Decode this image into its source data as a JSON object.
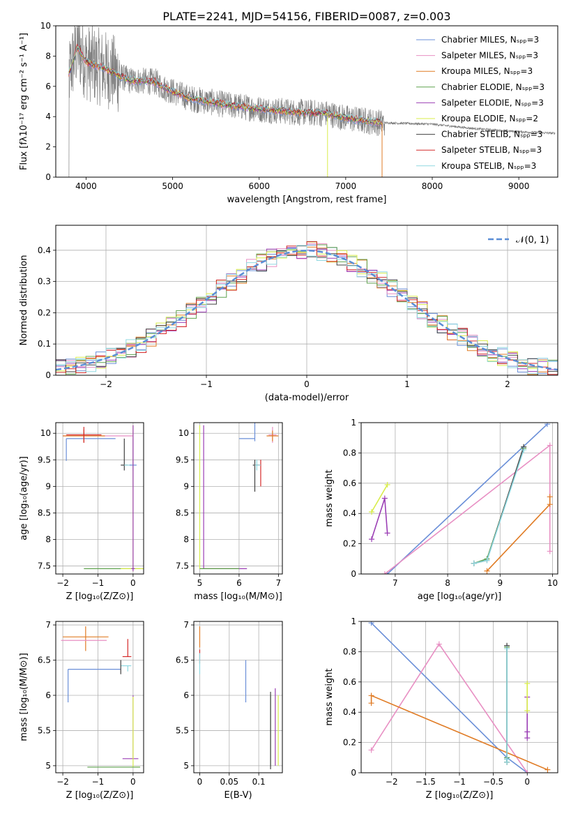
{
  "figure": {
    "title": "PLATE=2241, MJD=54156, FIBERID=0087, z=0.003"
  },
  "colors": {
    "spectrum": "#808080",
    "normal": "#5b8ed6",
    "series": [
      "#6a8fd8",
      "#e88fc3",
      "#e07b24",
      "#5fa24f",
      "#9b3fb5",
      "#d8ec4a",
      "#404040",
      "#d42a2a",
      "#8fd8e0"
    ]
  },
  "chart_data": [
    {
      "id": "spectrum",
      "type": "line",
      "xlabel": "wavelength [Angstrom, rest frame]",
      "ylabel": "Flux [fλ10⁻¹⁷ erg cm⁻² s⁻¹ A⁻¹]",
      "xlim": [
        3650,
        9450
      ],
      "ylim": [
        0,
        10
      ],
      "xticks": [
        4000,
        5000,
        6000,
        7000,
        8000,
        9000
      ],
      "yticks": [
        0,
        2,
        4,
        6,
        8,
        10
      ],
      "legend_loc": "right",
      "legend": [
        {
          "label": "Chabrier MILES, Nₛₚₚ=3",
          "color": "#6a8fd8"
        },
        {
          "label": "Salpeter MILES, Nₛₚₚ=3",
          "color": "#e88fc3"
        },
        {
          "label": "Kroupa MILES, Nₛₚₚ=3",
          "color": "#e07b24"
        },
        {
          "label": "Chabrier ELODIE, Nₛₚₚ=3",
          "color": "#5fa24f"
        },
        {
          "label": "Salpeter ELODIE, Nₛₚₚ=3",
          "color": "#9b3fb5"
        },
        {
          "label": "Kroupa ELODIE, Nₛₚₚ=2",
          "color": "#d8ec4a"
        },
        {
          "label": "Chabrier STELIB, Nₛₚₚ=3",
          "color": "#404040"
        },
        {
          "label": "Salpeter STELIB, Nₛₚₚ=3",
          "color": "#d42a2a"
        },
        {
          "label": "Kroupa STELIB, Nₛₚₚ=3",
          "color": "#8fd8e0"
        }
      ],
      "model_continuum": {
        "x": [
          3800,
          3900,
          4000,
          4200,
          4500,
          4800,
          4900,
          5200,
          5600,
          6000,
          6400,
          6800,
          7000,
          7400,
          8000,
          8500,
          9000,
          9400
        ],
        "y": [
          6.8,
          8.6,
          7.6,
          7.2,
          6.4,
          6.3,
          5.9,
          5.2,
          4.8,
          4.5,
          4.3,
          4.2,
          3.9,
          3.6,
          3.5,
          3.2,
          3.0,
          2.9
        ]
      }
    },
    {
      "id": "residuals",
      "type": "step",
      "xlabel": "(data-model)/error",
      "ylabel": "Normed distribution",
      "xlim": [
        -2.5,
        2.5
      ],
      "ylim": [
        0,
        0.48
      ],
      "xticks": [
        -2,
        -1,
        0,
        1,
        2
      ],
      "yticks": [
        0.0,
        0.1,
        0.2,
        0.3,
        0.4
      ],
      "legend": [
        {
          "label": "𝒩(0, 1)",
          "style": "dashed"
        }
      ],
      "bin_width": 0.1
    },
    {
      "id": "age_vs_Z",
      "type": "errorbar",
      "xlabel": "Z [log₁₀(Z/Z⊙)]",
      "ylabel": "age  [log₁₀(age/yr)]",
      "xlim": [
        -2.2,
        0.3
      ],
      "ylim": [
        7.35,
        10.2
      ],
      "xticks": [
        -2,
        -1,
        0
      ],
      "yticks": [
        7.5,
        8.0,
        8.5,
        9.0,
        9.5,
        10.0
      ],
      "points": [
        {
          "c": 0,
          "x": -1.9,
          "y": 9.9,
          "ex": [
            0.0,
            1.4
          ],
          "ey": [
            0.42,
            0.0
          ]
        },
        {
          "c": 1,
          "x": -2.0,
          "y": 9.95,
          "ex": [
            0.0,
            2.0
          ],
          "ey": [
            0,
            0
          ]
        },
        {
          "c": 2,
          "x": -1.4,
          "y": 9.95,
          "ex": [
            0.6,
            0.6
          ],
          "ey": [
            0.12,
            0.12
          ]
        },
        {
          "c": 7,
          "x": -1.4,
          "y": 9.97,
          "ex": [
            0.5,
            0.5
          ],
          "ey": [
            0.15,
            0.15
          ]
        },
        {
          "c": 6,
          "x": -0.25,
          "y": 9.4,
          "ex": [
            0.1,
            0.1
          ],
          "ey": [
            0.1,
            0.5
          ]
        },
        {
          "c": 8,
          "x": 0.0,
          "y": 9.4,
          "ex": [
            0.25,
            0.05
          ],
          "ey": [
            0.4,
            0.3
          ]
        },
        {
          "c": 0,
          "x": 0.0,
          "y": 9.4,
          "ex": [
            0.1,
            0.1
          ],
          "ey": [
            0.1,
            0.5
          ]
        },
        {
          "c": 3,
          "x": -0.3,
          "y": 7.45,
          "ex": [
            1.1,
            0.5
          ],
          "ey": [
            0,
            0
          ]
        },
        {
          "c": 5,
          "x": 0.0,
          "y": 7.45,
          "ex": [
            0.35,
            0.35
          ],
          "ey": [
            0.05,
            2.7
          ]
        },
        {
          "c": 4,
          "x": 0.0,
          "y": 7.45,
          "ex": [
            0.05,
            0.05
          ],
          "ey": [
            0.05,
            2.7
          ]
        }
      ]
    },
    {
      "id": "age_vs_mass",
      "type": "errorbar",
      "xlabel": "mass [log₁₀(M/M⊙)]",
      "ylabel": "",
      "xlim": [
        4.85,
        7.1
      ],
      "ylim": [
        7.35,
        10.2
      ],
      "xticks": [
        5,
        6,
        7
      ],
      "yticks": [
        7.5,
        8.0,
        8.5,
        9.0,
        9.5,
        10.0
      ],
      "points": [
        {
          "c": 0,
          "x": 6.4,
          "y": 9.9,
          "ex": [
            0.4,
            0.0
          ],
          "ey": [
            0.05,
            0.5
          ]
        },
        {
          "c": 6,
          "x": 6.4,
          "y": 9.4,
          "ex": [
            0.05,
            0.1
          ],
          "ey": [
            0.5,
            0.1
          ]
        },
        {
          "c": 7,
          "x": 6.55,
          "y": 9.4,
          "ex": [
            0.15,
            0.0
          ],
          "ey": [
            0.4,
            0.1
          ]
        },
        {
          "c": 1,
          "x": 6.85,
          "y": 9.97,
          "ex": [
            0.1,
            0.1
          ],
          "ey": [
            0.15,
            0.15
          ]
        },
        {
          "c": 2,
          "x": 6.85,
          "y": 9.95,
          "ex": [
            0.15,
            0.15
          ],
          "ey": [
            0.1,
            0.1
          ]
        },
        {
          "c": 8,
          "x": 6.45,
          "y": 9.4,
          "ex": [
            0.05,
            0.1
          ],
          "ey": [
            0.1,
            0.1
          ]
        },
        {
          "c": 5,
          "x": 5.0,
          "y": 7.45,
          "ex": [
            0.0,
            0.95
          ],
          "ey": [
            0,
            2.7
          ]
        },
        {
          "c": 4,
          "x": 5.1,
          "y": 7.45,
          "ex": [
            0.0,
            1.1
          ],
          "ey": [
            0,
            2.7
          ]
        },
        {
          "c": 3,
          "x": 5.0,
          "y": 7.45,
          "ex": [
            0.0,
            1.0
          ],
          "ey": [
            0,
            0
          ]
        }
      ]
    },
    {
      "id": "weight_vs_age",
      "type": "line",
      "xlabel": "age  [log₁₀(age/yr)]",
      "ylabel": "mass weight",
      "xlim": [
        6.35,
        10.1
      ],
      "ylim": [
        0,
        1.0
      ],
      "xticks": [
        7,
        8,
        9,
        10
      ],
      "yticks": [
        0.0,
        0.2,
        0.4,
        0.6,
        0.8,
        1.0
      ],
      "series": [
        {
          "c": 0,
          "x": [
            6.85,
            9.9
          ],
          "y": [
            0.0,
            0.99
          ]
        },
        {
          "c": 1,
          "x": [
            6.8,
            9.95,
            9.95
          ],
          "y": [
            0.0,
            0.85,
            0.15
          ]
        },
        {
          "c": 2,
          "x": [
            8.75,
            9.95,
            9.95
          ],
          "y": [
            0.02,
            0.46,
            0.51
          ]
        },
        {
          "c": 3,
          "x": [
            8.5,
            8.75,
            9.45
          ],
          "y": [
            0.07,
            0.1,
            0.83
          ]
        },
        {
          "c": 4,
          "x": [
            6.55,
            6.8,
            6.85
          ],
          "y": [
            0.23,
            0.5,
            0.27
          ]
        },
        {
          "c": 5,
          "x": [
            6.55,
            6.85
          ],
          "y": [
            0.41,
            0.59
          ]
        },
        {
          "c": 6,
          "x": [
            8.5,
            8.75,
            9.45
          ],
          "y": [
            0.07,
            0.09,
            0.84
          ]
        },
        {
          "c": 8,
          "x": [
            8.5,
            8.75,
            9.45
          ],
          "y": [
            0.07,
            0.09,
            0.82
          ]
        }
      ]
    },
    {
      "id": "mass_vs_Z",
      "type": "errorbar",
      "xlabel": "Z [log₁₀(Z/Z⊙)]",
      "ylabel": "mass [log₁₀(M/M⊙)]",
      "xlim": [
        -2.2,
        0.3
      ],
      "ylim": [
        4.9,
        7.05
      ],
      "xticks": [
        -2,
        -1,
        0
      ],
      "yticks": [
        5.0,
        5.5,
        6.0,
        6.5,
        7.0
      ],
      "points": [
        {
          "c": 0,
          "x": -1.85,
          "y": 6.37,
          "ex": [
            0.0,
            1.5
          ],
          "ey": [
            0.47,
            0.0
          ]
        },
        {
          "c": 2,
          "x": -1.35,
          "y": 6.83,
          "ex": [
            0.65,
            0.65
          ],
          "ey": [
            0.2,
            0.15
          ]
        },
        {
          "c": 1,
          "x": -1.35,
          "y": 6.78,
          "ex": [
            0.7,
            0.6
          ],
          "ey": [
            0,
            0
          ]
        },
        {
          "c": 7,
          "x": -0.15,
          "y": 6.55,
          "ex": [
            0.15,
            0.1
          ],
          "ey": [
            0.0,
            0.25
          ]
        },
        {
          "c": 8,
          "x": -0.15,
          "y": 6.42,
          "ex": [
            0.2,
            0.1
          ],
          "ey": [
            0.08,
            0.0
          ]
        },
        {
          "c": 6,
          "x": -0.35,
          "y": 6.5,
          "ex": [
            0,
            0
          ],
          "ey": [
            0.2,
            0.0
          ]
        },
        {
          "c": 4,
          "x": 0.0,
          "y": 5.1,
          "ex": [
            0.3,
            0.15
          ],
          "ey": [
            0.0,
            0.9
          ]
        },
        {
          "c": 5,
          "x": 0.0,
          "y": 4.98,
          "ex": [
            0.05,
            0.2
          ],
          "ey": [
            0.0,
            1.0
          ]
        },
        {
          "c": 3,
          "x": -0.7,
          "y": 4.98,
          "ex": [
            0.6,
            0.9
          ],
          "ey": [
            0,
            0
          ]
        }
      ]
    },
    {
      "id": "mass_vs_EBV",
      "type": "errorbar",
      "xlabel": "E(B-V)",
      "ylabel": "",
      "xlim": [
        -0.01,
        0.14
      ],
      "ylim": [
        4.9,
        7.05
      ],
      "xticks": [
        0.0,
        0.05,
        0.1
      ],
      "yticks": [
        5.0,
        5.5,
        6.0,
        6.5,
        7.0
      ],
      "points": [
        {
          "c": 2,
          "x": 0.0,
          "y": 6.78,
          "ey": [
            0.1,
            0.2
          ]
        },
        {
          "c": 7,
          "x": 0.0,
          "y": 6.55,
          "ey": [
            0.1,
            0.1
          ]
        },
        {
          "c": 8,
          "x": 0.0,
          "y": 6.45,
          "ey": [
            0.15,
            0.15
          ]
        },
        {
          "c": 0,
          "x": 0.078,
          "y": 6.2,
          "ey": [
            0.3,
            0.3
          ]
        },
        {
          "c": 3,
          "x": 0.12,
          "y": 5.5,
          "ey": [
            0.5,
            0.5
          ]
        },
        {
          "c": 6,
          "x": 0.12,
          "y": 5.5,
          "ey": [
            0.55,
            0.55
          ]
        },
        {
          "c": 4,
          "x": 0.128,
          "y": 5.55,
          "ey": [
            0.55,
            0.55
          ]
        },
        {
          "c": 5,
          "x": 0.133,
          "y": 5.5,
          "ey": [
            0.5,
            0.5
          ]
        }
      ]
    },
    {
      "id": "weight_vs_Z",
      "type": "line",
      "xlabel": "Z [log₁₀(Z/Z⊙)]",
      "ylabel": "mass weight",
      "xlim": [
        -2.45,
        0.45
      ],
      "ylim": [
        0,
        1.0
      ],
      "xticks": [
        -2.0,
        -1.5,
        -1.0,
        -0.5,
        0.0
      ],
      "yticks": [
        0.0,
        0.2,
        0.4,
        0.6,
        0.8,
        1.0
      ],
      "series": [
        {
          "c": 0,
          "x": [
            -2.3,
            -0.3,
            0.0
          ],
          "y": [
            0.99,
            0.1,
            0.0
          ]
        },
        {
          "c": 1,
          "x": [
            -2.3,
            -1.3,
            0.0
          ],
          "y": [
            0.15,
            0.85,
            0.0
          ]
        },
        {
          "c": 2,
          "x": [
            -2.3,
            -2.3,
            0.3
          ],
          "y": [
            0.46,
            0.51,
            0.02
          ]
        },
        {
          "c": 3,
          "x": [
            -0.3,
            -0.3,
            -0.3
          ],
          "y": [
            0.07,
            0.1,
            0.83
          ]
        },
        {
          "c": 4,
          "x": [
            0.0,
            0.0,
            0.0
          ],
          "y": [
            0.23,
            0.27,
            0.5
          ]
        },
        {
          "c": 5,
          "x": [
            0.0,
            0.0
          ],
          "y": [
            0.41,
            0.59
          ]
        },
        {
          "c": 6,
          "x": [
            -0.3,
            -0.3,
            -0.3
          ],
          "y": [
            0.07,
            0.09,
            0.84
          ]
        },
        {
          "c": 8,
          "x": [
            -0.3,
            -0.3,
            -0.3
          ],
          "y": [
            0.07,
            0.09,
            0.82
          ]
        }
      ]
    }
  ]
}
